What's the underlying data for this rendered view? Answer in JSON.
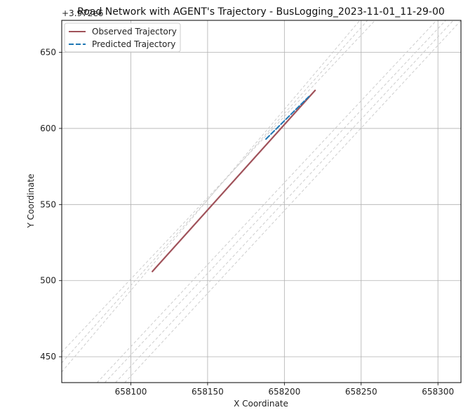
{
  "chart_data": {
    "type": "line",
    "title": "Road Network with AGENT's Trajectory - BusLogging_2023-11-01_11-29-00",
    "xlabel": "X Coordinate",
    "ylabel": "Y Coordinate",
    "y_offset_label": "+3.972e6",
    "xlim": [
      658055,
      658315
    ],
    "ylim": [
      433,
      671
    ],
    "x_ticks": [
      658100,
      658150,
      658200,
      658250,
      658300
    ],
    "y_ticks": [
      450,
      500,
      550,
      600,
      650
    ],
    "grid": true,
    "legend_position": "upper-left",
    "series": [
      {
        "name": "Observed Trajectory",
        "color": "#a0525a",
        "style": "solid",
        "x": [
          658114,
          658220
        ],
        "y": [
          506,
          625
        ]
      },
      {
        "name": "Predicted Trajectory",
        "color": "#1f77b4",
        "style": "dashed",
        "x": [
          658188,
          658216
        ],
        "y": [
          593,
          621
        ]
      }
    ],
    "road_lines": {
      "color": "#c8c8c8",
      "style": "dashed",
      "lines": [
        {
          "x": [
            658055,
            658250
          ],
          "y": [
            440,
            672
          ]
        },
        {
          "x": [
            658055,
            658255
          ],
          "y": [
            446,
            672
          ]
        },
        {
          "x": [
            658055,
            658260
          ],
          "y": [
            453,
            672
          ]
        },
        {
          "x": [
            658078,
            658300
          ],
          "y": [
            433,
            672
          ]
        },
        {
          "x": [
            658083,
            658306
          ],
          "y": [
            433,
            672
          ]
        },
        {
          "x": [
            658090,
            658311
          ],
          "y": [
            433,
            672
          ]
        },
        {
          "x": [
            658096,
            658316
          ],
          "y": [
            433,
            672
          ]
        }
      ]
    }
  }
}
